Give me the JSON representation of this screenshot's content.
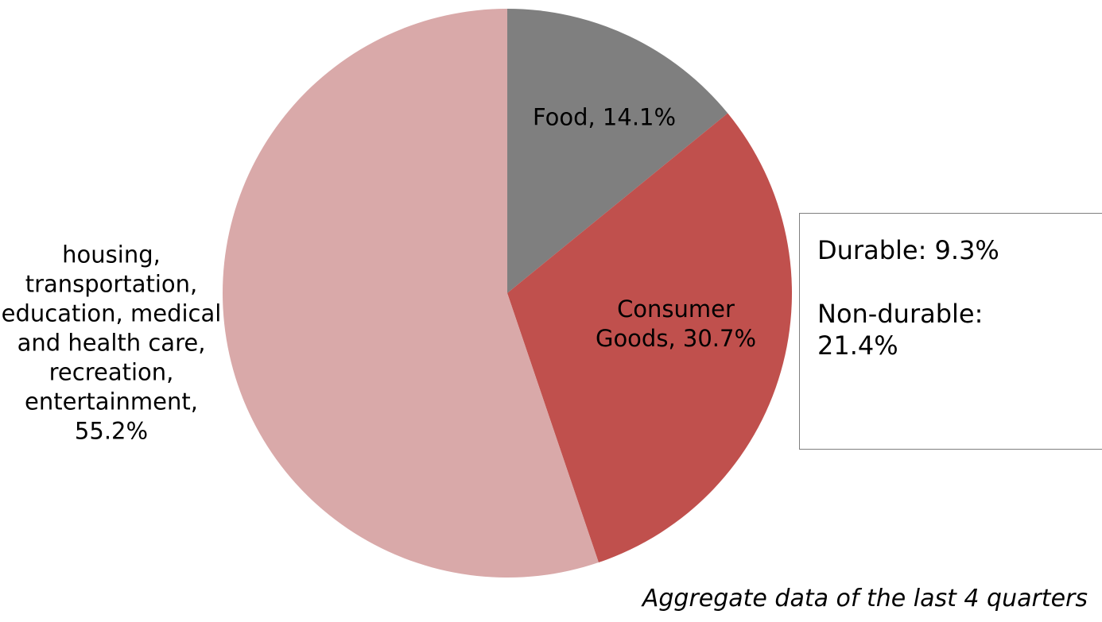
{
  "chart_data": {
    "type": "pie",
    "values": [
      14.1,
      30.7,
      55.2
    ],
    "value_labels": [
      "Food, 14.1%",
      "Consumer Goods, 30.7%",
      "housing, transportation, education, medical and health care, recreation, entertainment, 55.2%"
    ],
    "colors": [
      "#7f7f7f",
      "#c0504d",
      "#d9a9a9"
    ],
    "annotations": [
      "Durable: 9.3%",
      "Non-durable: 21.4%"
    ],
    "footnote": "Aggregate data of the last 4 quarters"
  }
}
